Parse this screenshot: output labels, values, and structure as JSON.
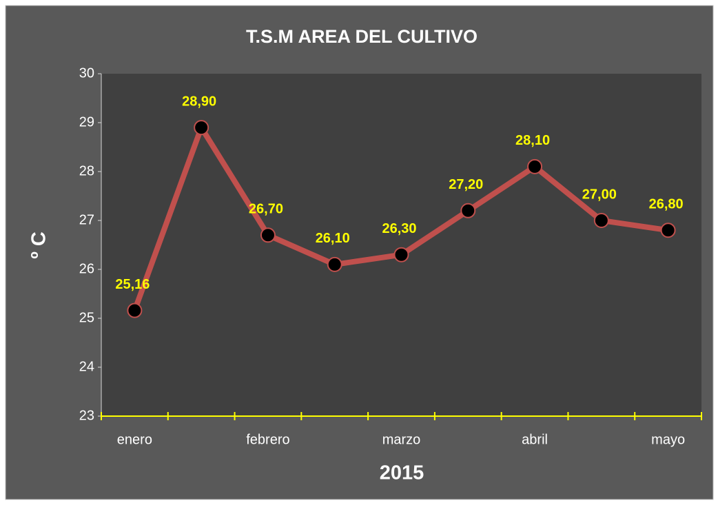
{
  "chart_data": {
    "type": "line",
    "title": "T.S.M AREA DEL CULTIVO",
    "x_label": "2015",
    "y_label": "º C",
    "categories": [
      "enero",
      null,
      "febrero",
      null,
      "marzo",
      null,
      "abril",
      null,
      "mayo"
    ],
    "series": [
      {
        "name": "T.S.M",
        "color": "#c0504d",
        "values": [
          25.16,
          28.9,
          26.7,
          26.1,
          26.3,
          27.2,
          28.1,
          27.0,
          26.8
        ],
        "value_labels": [
          "25,16",
          "28,90",
          "26,70",
          "26,10",
          "26,30",
          "27,20",
          "28,10",
          "27,00",
          "26,80"
        ]
      }
    ],
    "ylim": [
      23,
      30
    ],
    "yticks": [
      23,
      24,
      25,
      26,
      27,
      28,
      29,
      30
    ],
    "grid": false,
    "label_color": "#ffff00"
  }
}
